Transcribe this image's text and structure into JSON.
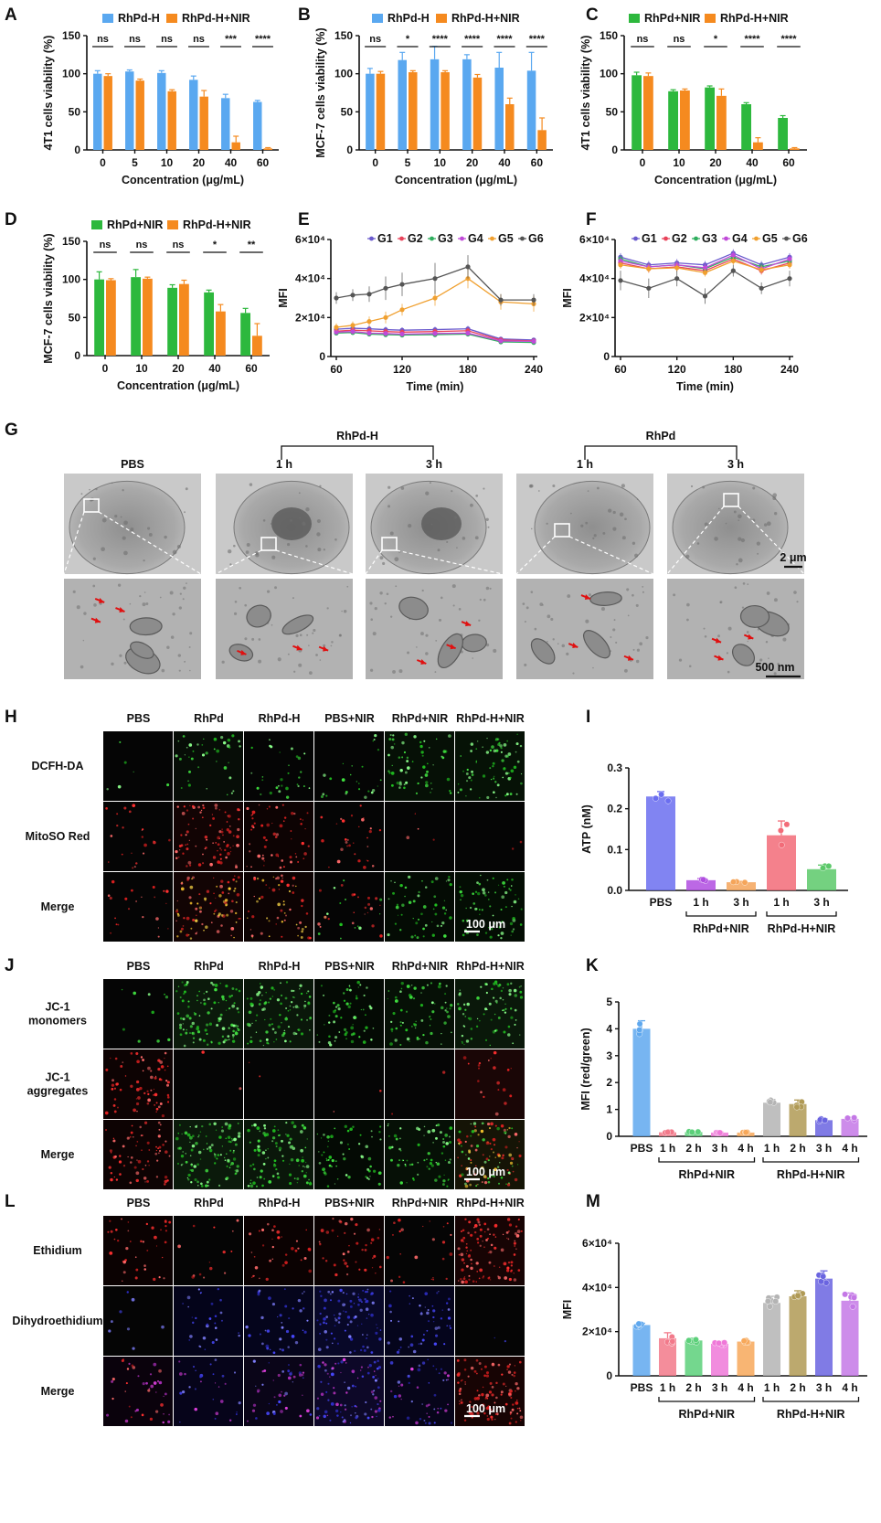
{
  "panel_labels": [
    "A",
    "B",
    "C",
    "D",
    "E",
    "F",
    "G",
    "H",
    "I",
    "J",
    "K",
    "L",
    "M"
  ],
  "chart_data": [
    {
      "id": "A",
      "type": "bar",
      "ylabel": "4T1 cells viability (%)",
      "xlabel": "Concentration (μg/mL)",
      "categories": [
        "0",
        "5",
        "10",
        "20",
        "40",
        "60"
      ],
      "ylim": [
        0,
        150
      ],
      "yticks": [
        "0",
        "50",
        "100",
        "150"
      ],
      "series": [
        {
          "name": "RhPd-H",
          "color": "#5aa8f0",
          "values": [
            100,
            103,
            101,
            92,
            68,
            63
          ],
          "errors": [
            4,
            2,
            3,
            5,
            5,
            2
          ]
        },
        {
          "name": "RhPd-H+NIR",
          "color": "#f58a1f",
          "values": [
            97,
            91,
            77,
            70,
            10,
            2
          ],
          "errors": [
            3,
            2,
            2,
            8,
            8,
            1
          ]
        }
      ],
      "significance": [
        "ns",
        "ns",
        "ns",
        "ns",
        "***",
        "****"
      ]
    },
    {
      "id": "B",
      "type": "bar",
      "ylabel": "MCF-7 cells viability (%)",
      "xlabel": "Concentration (μg/mL)",
      "categories": [
        "0",
        "5",
        "10",
        "20",
        "40",
        "60"
      ],
      "ylim": [
        0,
        150
      ],
      "yticks": [
        "0",
        "50",
        "100",
        "150"
      ],
      "series": [
        {
          "name": "RhPd-H",
          "color": "#5aa8f0",
          "values": [
            100,
            118,
            119,
            119,
            108,
            104
          ],
          "errors": [
            7,
            10,
            17,
            6,
            20,
            24
          ]
        },
        {
          "name": "RhPd-H+NIR",
          "color": "#f58a1f",
          "values": [
            100,
            102,
            102,
            95,
            60,
            26
          ],
          "errors": [
            3,
            2,
            2,
            4,
            8,
            16
          ]
        }
      ],
      "significance": [
        "ns",
        "*",
        "****",
        "****",
        "****",
        "****"
      ]
    },
    {
      "id": "C",
      "type": "bar",
      "ylabel": "4T1 cells viability (%)",
      "xlabel": "Concentration (μg/mL)",
      "categories": [
        "0",
        "10",
        "20",
        "40",
        "60"
      ],
      "ylim": [
        0,
        150
      ],
      "yticks": [
        "0",
        "50",
        "100",
        "150"
      ],
      "series": [
        {
          "name": "RhPd+NIR",
          "color": "#2db83d",
          "values": [
            98,
            77,
            82,
            60,
            42
          ],
          "errors": [
            4,
            2,
            2,
            2,
            3
          ]
        },
        {
          "name": "RhPd-H+NIR",
          "color": "#f58a1f",
          "values": [
            97,
            78,
            71,
            10,
            2
          ],
          "errors": [
            4,
            2,
            9,
            6,
            1
          ]
        }
      ],
      "significance": [
        "ns",
        "ns",
        "*",
        "****",
        "****"
      ]
    },
    {
      "id": "D",
      "type": "bar",
      "ylabel": "MCF-7 cells viability (%)",
      "xlabel": "Concentration (μg/mL)",
      "categories": [
        "0",
        "10",
        "20",
        "40",
        "60"
      ],
      "ylim": [
        0,
        150
      ],
      "yticks": [
        "0",
        "50",
        "100",
        "150"
      ],
      "series": [
        {
          "name": "RhPd+NIR",
          "color": "#2db83d",
          "values": [
            100,
            103,
            89,
            83,
            56
          ],
          "errors": [
            10,
            10,
            4,
            3,
            6
          ]
        },
        {
          "name": "RhPd-H+NIR",
          "color": "#f58a1f",
          "values": [
            99,
            101,
            94,
            58,
            26
          ],
          "errors": [
            2,
            2,
            5,
            9,
            16
          ]
        }
      ],
      "significance": [
        "ns",
        "ns",
        "ns",
        "*",
        "**"
      ]
    },
    {
      "id": "E",
      "type": "line",
      "ylabel": "MFI",
      "xlabel": "Time (min)",
      "x": [
        60,
        75,
        90,
        105,
        120,
        150,
        180,
        210,
        240
      ],
      "xticks": [
        "60",
        "120",
        "180",
        "240"
      ],
      "ylim": [
        0,
        60000
      ],
      "yticks": [
        "0",
        "2×10⁴",
        "4×10⁴",
        "6×10⁴"
      ],
      "series": [
        {
          "name": "G1",
          "color": "#6a5acd",
          "values": [
            14000,
            14500,
            14200,
            13800,
            13500,
            13800,
            14200,
            9000,
            8500
          ],
          "errors": [
            1500,
            1500,
            1500,
            1500,
            1500,
            1500,
            1500,
            1000,
            1000
          ]
        },
        {
          "name": "G2",
          "color": "#e8435a",
          "values": [
            13000,
            13500,
            13200,
            12800,
            12500,
            12800,
            13200,
            8500,
            8000
          ],
          "errors": [
            1500,
            1500,
            1500,
            1500,
            1500,
            1500,
            1500,
            1000,
            1000
          ]
        },
        {
          "name": "G3",
          "color": "#2fae5e",
          "values": [
            12000,
            12300,
            11500,
            11200,
            11000,
            11200,
            11500,
            7500,
            7200
          ],
          "errors": [
            1200,
            1200,
            1200,
            1200,
            1200,
            1200,
            1200,
            800,
            800
          ]
        },
        {
          "name": "G4",
          "color": "#c04ad8",
          "values": [
            12500,
            12800,
            12000,
            11800,
            11500,
            11800,
            12000,
            8000,
            7800
          ],
          "errors": [
            1200,
            1200,
            1200,
            1200,
            1200,
            1200,
            1200,
            800,
            800
          ]
        },
        {
          "name": "G5",
          "color": "#f0a030",
          "values": [
            15000,
            16000,
            18000,
            20000,
            24000,
            30000,
            40000,
            28000,
            27000
          ],
          "errors": [
            2000,
            2000,
            2500,
            3000,
            3000,
            4000,
            5000,
            4000,
            4000
          ]
        },
        {
          "name": "G6",
          "color": "#555555",
          "values": [
            30000,
            31500,
            32000,
            35000,
            37000,
            40000,
            46000,
            29000,
            29000
          ],
          "errors": [
            3000,
            3000,
            4000,
            6000,
            6000,
            8000,
            6000,
            3000,
            3000
          ]
        }
      ]
    },
    {
      "id": "F",
      "type": "line",
      "ylabel": "MFI",
      "xlabel": "Time (min)",
      "x": [
        60,
        90,
        120,
        150,
        180,
        210,
        240
      ],
      "xticks": [
        "60",
        "120",
        "180",
        "240"
      ],
      "ylim": [
        0,
        60000
      ],
      "yticks": [
        "0",
        "2×10⁴",
        "4×10⁴",
        "6×10⁴"
      ],
      "series": [
        {
          "name": "G1",
          "color": "#6a5acd",
          "values": [
            51000,
            47000,
            48000,
            47000,
            53000,
            47000,
            51000
          ],
          "errors": [
            2000,
            2000,
            2000,
            2000,
            2000,
            2000,
            2000
          ]
        },
        {
          "name": "G2",
          "color": "#e8435a",
          "values": [
            48000,
            45000,
            46000,
            44000,
            50000,
            44000,
            48000
          ],
          "errors": [
            2000,
            2000,
            2000,
            2000,
            2000,
            2000,
            2000
          ]
        },
        {
          "name": "G3",
          "color": "#2fae5e",
          "values": [
            50000,
            46000,
            47000,
            45000,
            51000,
            46000,
            49000
          ],
          "errors": [
            2000,
            2000,
            2000,
            2000,
            2000,
            2000,
            2000
          ]
        },
        {
          "name": "G4",
          "color": "#c04ad8",
          "values": [
            49000,
            46000,
            47000,
            45500,
            52000,
            45000,
            50000
          ],
          "errors": [
            2000,
            2000,
            2000,
            2000,
            2000,
            2000,
            2000
          ]
        },
        {
          "name": "G5",
          "color": "#f0a030",
          "values": [
            47000,
            45000,
            45500,
            43000,
            49000,
            44500,
            47000
          ],
          "errors": [
            2000,
            2000,
            2000,
            2000,
            2000,
            2000,
            2000
          ]
        },
        {
          "name": "G6",
          "color": "#555555",
          "values": [
            39000,
            35000,
            40000,
            31000,
            44000,
            35000,
            40000
          ],
          "errors": [
            5000,
            5000,
            4000,
            4000,
            3000,
            3000,
            4000
          ]
        }
      ]
    },
    {
      "id": "I",
      "type": "bar",
      "ylabel": "ATP (nM)",
      "categories": [
        "PBS",
        "1 h",
        "3 h",
        "1 h",
        "3 h"
      ],
      "ylim": [
        0,
        0.3
      ],
      "yticks": [
        "0.0",
        "0.1",
        "0.2",
        "0.3"
      ],
      "values": [
        0.23,
        0.025,
        0.02,
        0.135,
        0.052
      ],
      "errors": [
        0.012,
        0.004,
        0.002,
        0.035,
        0.01
      ],
      "colors": [
        "#6b6ef0",
        "#b04ee0",
        "#f5a55a",
        "#f26b78",
        "#5cc96a"
      ],
      "groups": [
        {
          "label": "RhPd+NIR",
          "from": 1,
          "to": 2
        },
        {
          "label": "RhPd-H+NIR",
          "from": 3,
          "to": 4
        }
      ]
    },
    {
      "id": "K",
      "type": "bar",
      "ylabel": "MFI (red/green)",
      "categories": [
        "PBS",
        "1 h",
        "2 h",
        "3 h",
        "4 h",
        "1 h",
        "2 h",
        "3 h",
        "4 h"
      ],
      "ylim": [
        0,
        5
      ],
      "yticks": [
        "0",
        "1",
        "2",
        "3",
        "4",
        "5"
      ],
      "values": [
        4.0,
        0.15,
        0.16,
        0.14,
        0.14,
        1.25,
        1.2,
        0.6,
        0.65
      ],
      "errors": [
        0.3,
        0.02,
        0.02,
        0.02,
        0.02,
        0.12,
        0.15,
        0.06,
        0.06
      ],
      "colors": [
        "#5fa8ee",
        "#f2798a",
        "#5cd07a",
        "#ef78d8",
        "#f7a85a",
        "#b4b4b4",
        "#b09a55",
        "#6a64e0",
        "#c478e6"
      ],
      "groups": [
        {
          "label": "RhPd+NIR",
          "from": 1,
          "to": 4
        },
        {
          "label": "RhPd-H+NIR",
          "from": 5,
          "to": 8
        }
      ]
    },
    {
      "id": "M",
      "type": "bar",
      "ylabel": "MFI",
      "categories": [
        "PBS",
        "1 h",
        "2 h",
        "3 h",
        "4 h",
        "1 h",
        "2 h",
        "3 h",
        "4 h"
      ],
      "ylim": [
        0,
        60000
      ],
      "yticks": [
        "0",
        "2×10⁴",
        "4×10⁴",
        "6×10⁴"
      ],
      "values": [
        23000,
        17000,
        16000,
        14500,
        15500,
        33000,
        36000,
        44000,
        34000
      ],
      "errors": [
        800,
        2500,
        1000,
        600,
        700,
        3000,
        2500,
        3500,
        3500
      ],
      "colors": [
        "#5fa8ee",
        "#f2798a",
        "#5cd07a",
        "#ef78d8",
        "#f7a85a",
        "#b4b4b4",
        "#b09a55",
        "#6a64e0",
        "#c478e6"
      ],
      "groups": [
        {
          "label": "RhPd+NIR",
          "from": 1,
          "to": 4
        },
        {
          "label": "RhPd-H+NIR",
          "from": 5,
          "to": 8
        }
      ]
    }
  ],
  "micrographs": {
    "G": {
      "group_labels": [
        "RhPd-H",
        "RhPd"
      ],
      "column_headers": [
        "PBS",
        "1 h",
        "3 h",
        "1 h",
        "3 h"
      ],
      "scale_top": "2 μm",
      "scale_bottom": "500 nm"
    },
    "H": {
      "column_headers": [
        "PBS",
        "RhPd",
        "RhPd-H",
        "PBS+NIR",
        "RhPd+NIR",
        "RhPd-H+NIR"
      ],
      "row_labels": [
        "DCFH-DA",
        "MitoSO Red",
        "Merge"
      ],
      "scale": "100 μm"
    },
    "J": {
      "column_headers": [
        "PBS",
        "RhPd",
        "RhPd-H",
        "PBS+NIR",
        "RhPd+NIR",
        "RhPd-H+NIR"
      ],
      "row_labels": [
        [
          "JC-1",
          "monomers"
        ],
        [
          "JC-1",
          "aggregates"
        ],
        [
          "Merge"
        ]
      ],
      "scale": "100 μm"
    },
    "L": {
      "column_headers": [
        "PBS",
        "RhPd",
        "RhPd-H",
        "PBS+NIR",
        "RhPd+NIR",
        "RhPd-H+NIR"
      ],
      "row_labels": [
        "Ethidium",
        "Dihydroethidium",
        "Merge"
      ],
      "scale": "100 μm"
    }
  }
}
